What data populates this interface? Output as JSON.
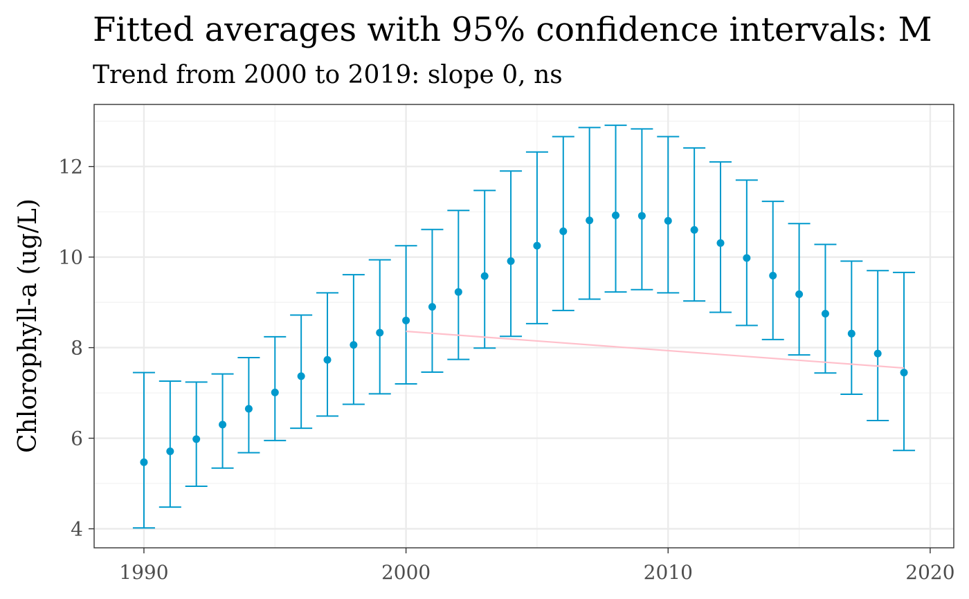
{
  "chart_data": {
    "type": "errorbar",
    "title": "Fitted averages with 95% confidence intervals: M",
    "subtitle": "Trend from 2000 to 2019: slope 0, ns",
    "xlabel": "",
    "ylabel": "Chlorophyll-a (ug/L)",
    "xlim": [
      1988.1,
      2020.9
    ],
    "ylim": [
      3.58,
      13.37
    ],
    "x_ticks": [
      1990,
      2000,
      2010,
      2020
    ],
    "y_ticks": [
      4,
      6,
      8,
      10,
      12
    ],
    "grid": true,
    "series": [
      {
        "x": [
          1990,
          1991,
          1992,
          1993,
          1994,
          1995,
          1996,
          1997,
          1998,
          1999,
          2000,
          2001,
          2002,
          2003,
          2004,
          2005,
          2006,
          2007,
          2008,
          2009,
          2010,
          2011,
          2012,
          2013,
          2014,
          2015,
          2016,
          2017,
          2018,
          2019
        ],
        "y": [
          5.47,
          5.71,
          5.98,
          6.3,
          6.65,
          7.01,
          7.37,
          7.73,
          8.06,
          8.33,
          8.6,
          8.9,
          9.23,
          9.58,
          9.91,
          10.25,
          10.57,
          10.81,
          10.92,
          10.91,
          10.8,
          10.6,
          10.31,
          9.98,
          9.59,
          9.18,
          8.75,
          8.31,
          7.87,
          7.45
        ],
        "lower": [
          4.02,
          4.48,
          4.94,
          5.34,
          5.68,
          5.95,
          6.22,
          6.49,
          6.75,
          6.98,
          7.2,
          7.46,
          7.74,
          7.99,
          8.25,
          8.53,
          8.82,
          9.07,
          9.23,
          9.28,
          9.21,
          9.03,
          8.78,
          8.49,
          8.18,
          7.84,
          7.44,
          6.97,
          6.39,
          5.73
        ],
        "upper": [
          7.45,
          7.26,
          7.24,
          7.42,
          7.78,
          8.24,
          8.72,
          9.21,
          9.61,
          9.94,
          10.25,
          10.61,
          11.03,
          11.47,
          11.9,
          12.32,
          12.66,
          12.86,
          12.91,
          12.83,
          12.66,
          12.41,
          12.1,
          11.7,
          11.23,
          10.74,
          10.28,
          9.91,
          9.7,
          9.66
        ],
        "color": "#0099CC"
      }
    ],
    "trend_line": {
      "x": [
        2000,
        2019
      ],
      "y": [
        8.36,
        7.55
      ],
      "color": "#FFC0CB"
    },
    "colors": {
      "panel_border": "#333333",
      "grid_major": "#EBEBEB",
      "grid_minor": "#F2F2F2",
      "tick": "#333333"
    }
  }
}
